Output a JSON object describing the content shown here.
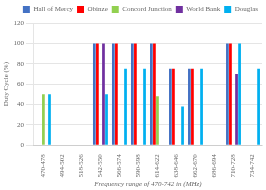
{
  "chart_data": {
    "type": "bar",
    "categories": [
      "470-478",
      "494-502",
      "518-526",
      "542-550",
      "566-574",
      "590-598",
      "614-622",
      "638-646",
      "662-670",
      "686-694",
      "710-728",
      "734-742"
    ],
    "series": [
      {
        "name": "Hall of Mercy",
        "color": "#4472C4",
        "values": [
          0,
          0,
          0,
          100,
          100,
          100,
          100,
          75,
          75,
          0,
          100,
          0
        ]
      },
      {
        "name": "Obinze",
        "color": "#FF0000",
        "values": [
          0,
          0,
          0,
          100,
          100,
          100,
          100,
          75,
          75,
          0,
          100,
          0
        ]
      },
      {
        "name": "Concord Junction",
        "color": "#92D050",
        "values": [
          50,
          0,
          0,
          0,
          0,
          0,
          48,
          0,
          0,
          0,
          0,
          0
        ]
      },
      {
        "name": "World Bank",
        "color": "#7030A0",
        "values": [
          0,
          0,
          0,
          100,
          0,
          0,
          0,
          0,
          0,
          0,
          70,
          0
        ]
      },
      {
        "name": "Douglas",
        "color": "#00B0F0",
        "values": [
          50,
          0,
          0,
          50,
          75,
          75,
          0,
          38,
          75,
          0,
          100,
          75
        ]
      }
    ],
    "xlabel": "Frequency range of 470-742 in (MHz)",
    "ylabel": "Duty Cycle (%)",
    "ylim": [
      0,
      120
    ],
    "yticks": [
      0,
      20,
      40,
      60,
      80,
      100,
      120
    ],
    "grid": true,
    "legend": "upper right"
  }
}
